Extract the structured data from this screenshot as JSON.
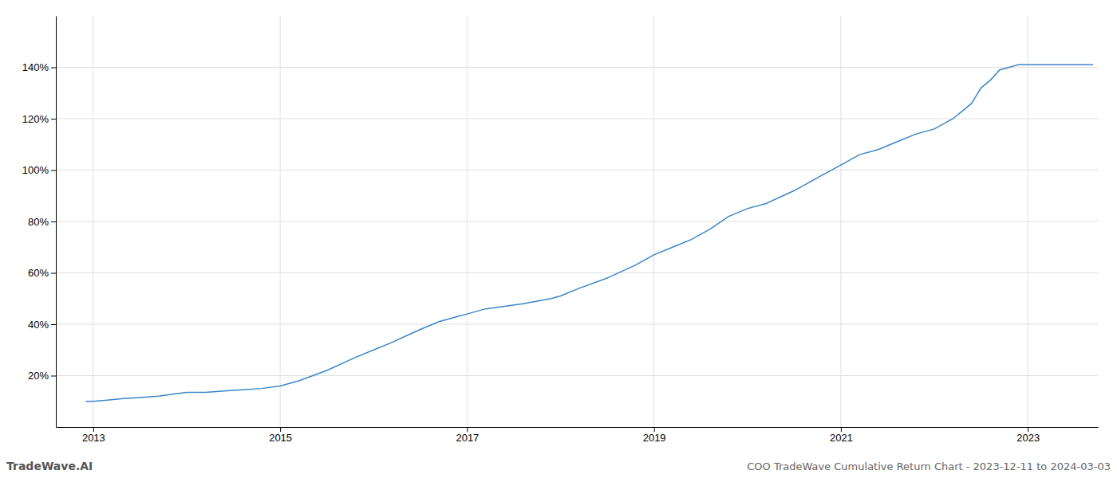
{
  "chart_data": {
    "type": "line",
    "title": "COO TradeWave Cumulative Return Chart - 2023-12-11 to 2024-03-03",
    "annotations": [
      "TradeWave.AI"
    ],
    "color": "#3a86c8",
    "grid": true,
    "x": [
      2012.92,
      2013.0,
      2013.15,
      2013.3,
      2013.5,
      2013.7,
      2013.9,
      2014.0,
      2014.1,
      2014.2,
      2014.4,
      2014.6,
      2014.8,
      2015.0,
      2015.2,
      2015.5,
      2015.8,
      2016.0,
      2016.2,
      2016.5,
      2016.7,
      2016.9,
      2017.0,
      2017.1,
      2017.2,
      2017.4,
      2017.6,
      2017.9,
      2018.0,
      2018.2,
      2018.5,
      2018.8,
      2019.0,
      2019.2,
      2019.4,
      2019.6,
      2019.8,
      2020.0,
      2020.2,
      2020.5,
      2020.8,
      2021.0,
      2021.2,
      2021.4,
      2021.6,
      2021.8,
      2022.0,
      2022.1,
      2022.2,
      2022.3,
      2022.4,
      2022.45,
      2022.5,
      2022.6,
      2022.65,
      2022.7,
      2022.8,
      2022.9,
      2023.0,
      2023.1,
      2023.2,
      2023.4,
      2023.6,
      2023.7
    ],
    "values": [
      10,
      10,
      10.5,
      11,
      11.5,
      12,
      13,
      13.5,
      13.5,
      13.5,
      14,
      14.5,
      15,
      16,
      18,
      22,
      27,
      30,
      33,
      38,
      41,
      43,
      44,
      45,
      46,
      47,
      48,
      50,
      51,
      54,
      58,
      63,
      67,
      70,
      73,
      77,
      82,
      85,
      87,
      92,
      98,
      102,
      106,
      108,
      111,
      114,
      116,
      118,
      120,
      123,
      126,
      129,
      132,
      135,
      137,
      139,
      140,
      141,
      141,
      141,
      141,
      141,
      141,
      141
    ],
    "xlim": [
      2012.6,
      2023.75
    ],
    "xticks": [
      2013,
      2015,
      2017,
      2019,
      2021,
      2023
    ],
    "ylim": [
      0,
      160
    ],
    "yticks": [
      {
        "value": 20,
        "label": "20%"
      },
      {
        "value": 40,
        "label": "40%"
      },
      {
        "value": 60,
        "label": "60%"
      },
      {
        "value": 80,
        "label": "80%"
      },
      {
        "value": 100,
        "label": "100%"
      },
      {
        "value": 120,
        "label": "120%"
      },
      {
        "value": 140,
        "label": "140%"
      }
    ]
  }
}
